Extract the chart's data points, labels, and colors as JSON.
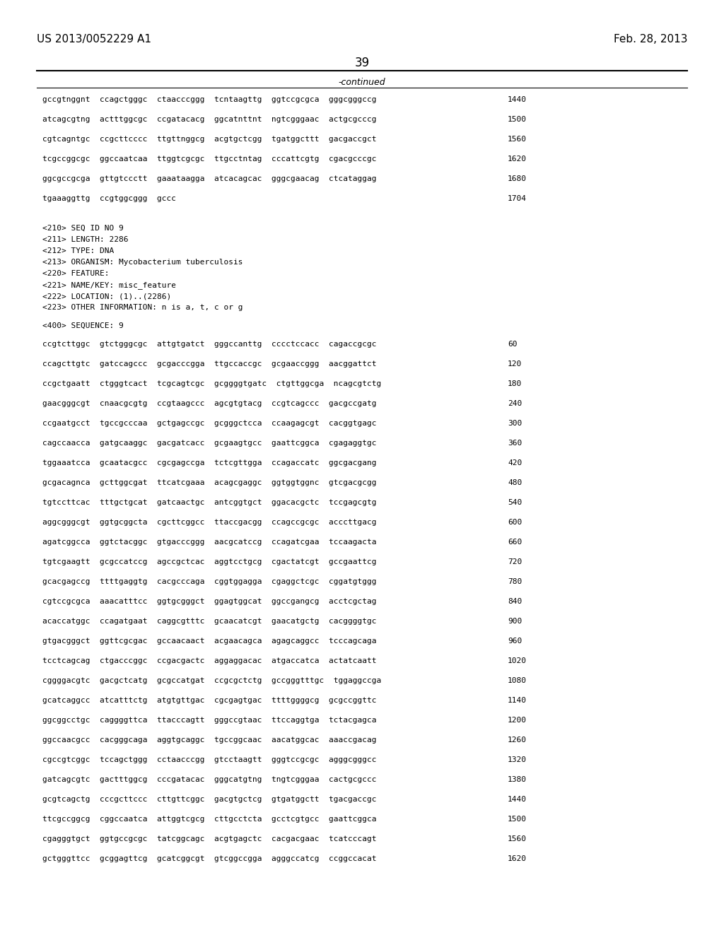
{
  "header_left": "US 2013/0052229 A1",
  "header_right": "Feb. 28, 2013",
  "page_number": "39",
  "continued_label": "-continued",
  "background_color": "#ffffff",
  "text_color": "#000000",
  "font_size_header": 11,
  "font_size_body": 8.0,
  "font_size_page": 12,
  "continued_section": [
    {
      "seq": "gccgtnggnt  ccagctgggc  ctaacccggg  tcntaagttg  ggtccgcgca  gggcgggccg",
      "num": "1440"
    },
    {
      "seq": "atcagcgtng  actttggcgc  ccgatacacg  ggcatnttnt  ngtcgggaac  actgcgcccg",
      "num": "1500"
    },
    {
      "seq": "cgtcagntgc  ccgcttcccc  ttgttnggcg  acgtgctcgg  tgatggcttt  gacgaccgct",
      "num": "1560"
    },
    {
      "seq": "tcgccggcgc  ggccaatcaa  ttggtcgcgc  ttgcctntag  cccattcgtg  cgacgcccgc",
      "num": "1620"
    },
    {
      "seq": "ggcgccgcga  gttgtccctt  gaaataagga  atcacagcac  gggcgaacag  ctcataggag",
      "num": "1680"
    },
    {
      "seq": "tgaaaggttg  ccgtggcggg  gccc",
      "num": "1704"
    }
  ],
  "seq_info": [
    "<210> SEQ ID NO 9",
    "<211> LENGTH: 2286",
    "<212> TYPE: DNA",
    "<213> ORGANISM: Mycobacterium tuberculosis",
    "<220> FEATURE:",
    "<221> NAME/KEY: misc_feature",
    "<222> LOCATION: (1)..(2286)",
    "<223> OTHER INFORMATION: n is a, t, c or g"
  ],
  "seq_label": "<400> SEQUENCE: 9",
  "sequence_lines": [
    {
      "seq": "ccgtcttggc  gtctgggcgc  attgtgatct  gggccanttg  cccctccacc  cagaccgcgc",
      "num": "60"
    },
    {
      "seq": "ccagcttgtc  gatccagccc  gcgacccgga  ttgccaccgc  gcgaaccggg  aacggattct",
      "num": "120"
    },
    {
      "seq": "ccgctgaatt  ctgggtcact  tcgcagtcgc  gcggggtgatc  ctgttggcga  ncagcgtctg",
      "num": "180"
    },
    {
      "seq": "gaacgggcgt  cnaacgcgtg  ccgtaagccc  agcgtgtacg  ccgtcagccc  gacgccgatg",
      "num": "240"
    },
    {
      "seq": "ccgaatgcct  tgccgcccaa  gctgagccgc  gcgggctcca  ccaagagcgt  cacggtgagc",
      "num": "300"
    },
    {
      "seq": "cagccaacca  gatgcaaggc  gacgatcacc  gcgaagtgcc  gaattcggca  cgagaggtgc",
      "num": "360"
    },
    {
      "seq": "tggaaatcca  gcaatacgcc  cgcgagccga  tctcgttgga  ccagaccatc  ggcgacgang",
      "num": "420"
    },
    {
      "seq": "gcgacagnca  gcttggcgat  ttcatcgaaa  acagcgaggc  ggtggtggnc  gtcgacgcgg",
      "num": "480"
    },
    {
      "seq": "tgtccttcac  tttgctgcat  gatcaactgc  antcggtgct  ggacacgctc  tccgagcgtg",
      "num": "540"
    },
    {
      "seq": "aggcgggcgt  ggtgcggcta  cgcttcggcc  ttaccgacgg  ccagccgcgc  acccttgacg",
      "num": "600"
    },
    {
      "seq": "agatcggcca  ggtctacggc  gtgacccggg  aacgcatccg  ccagatcgaa  tccaagacta",
      "num": "660"
    },
    {
      "seq": "tgtcgaagtt  gcgccatccg  agccgctcac  aggtcctgcg  cgactatcgt  gccgaattcg",
      "num": "720"
    },
    {
      "seq": "gcacgagccg  ttttgaggtg  cacgcccaga  cggtggagga  cgaggctcgc  cggatgtggg",
      "num": "780"
    },
    {
      "seq": "cgtccgcgca  aaacatttcc  ggtgcgggct  ggagtggcat  ggccgangcg  acctcgctag",
      "num": "840"
    },
    {
      "seq": "acaccatggc  ccagatgaat  caggcgtttc  gcaacatcgt  gaacatgctg  cacggggtgc",
      "num": "900"
    },
    {
      "seq": "gtgacgggct  ggttcgcgac  gccaacaact  acgaacagca  agagcaggcc  tcccagcaga",
      "num": "960"
    },
    {
      "seq": "tcctcagcag  ctgacccggc  ccgacgactc  aggaggacac  atgaccatca  actatcaatt",
      "num": "1020"
    },
    {
      "seq": "cggggacgtc  gacgctcatg  gcgccatgat  ccgcgctctg  gccgggtttgc  tggaggccga",
      "num": "1080"
    },
    {
      "seq": "gcatcaggcc  atcatttctg  atgtgttgac  cgcgagtgac  ttttggggcg  gcgccggttc",
      "num": "1140"
    },
    {
      "seq": "ggcggcctgc  caggggttca  ttacccagtt  gggccgtaac  ttccaggtga  tctacgagca",
      "num": "1200"
    },
    {
      "seq": "ggccaacgcc  cacgggcaga  aggtgcaggc  tgccggcaac  aacatggcac  aaaccgacag",
      "num": "1260"
    },
    {
      "seq": "cgccgtcggc  tccagctggg  cctaacccgg  gtcctaagtt  gggtccgcgc  agggcgggcc",
      "num": "1320"
    },
    {
      "seq": "gatcagcgtc  gactttggcg  cccgatacac  gggcatgtng  tngtcgggaa  cactgcgccc",
      "num": "1380"
    },
    {
      "seq": "gcgtcagctg  cccgcttccc  cttgttcggc  gacgtgctcg  gtgatggctt  tgacgaccgc",
      "num": "1440"
    },
    {
      "seq": "ttcgccggcg  cggccaatca  attggtcgcg  cttgcctcta  gcctcgtgcc  gaattcggca",
      "num": "1500"
    },
    {
      "seq": "cgagggtgct  ggtgccgcgc  tatcggcagc  acgtgagctc  cacgacgaac  tcatcccagt",
      "num": "1560"
    },
    {
      "seq": "gctgggttcc  gcggagttcg  gcatcggcgt  gtcggccgga  agggccatcg  ccggccacat",
      "num": "1620"
    }
  ]
}
